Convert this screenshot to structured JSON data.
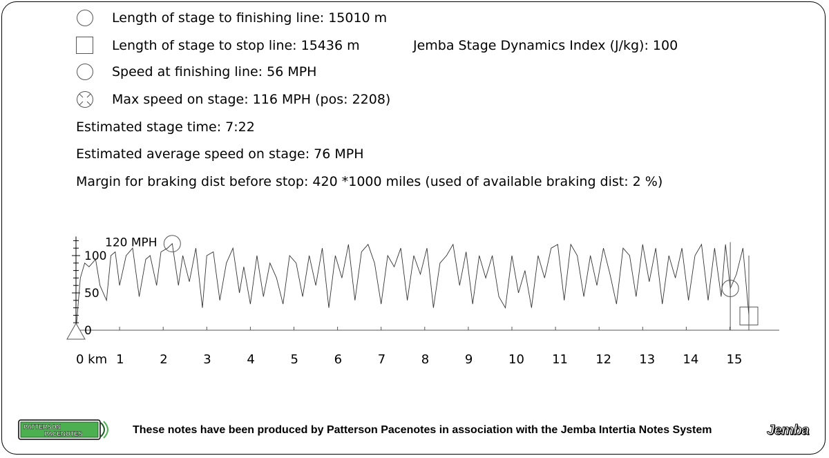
{
  "stats": {
    "finish_length": "Length of stage to finishing line: 15010 m",
    "stop_length": "Length of stage to stop line: 15436 m",
    "dynamics_index": "Jemba Stage Dynamics Index (J/kg): 100",
    "finish_speed": "Speed at finishing line: 56 MPH",
    "max_speed": "Max speed on stage: 116 MPH (pos: 2208)",
    "stage_time": "Estimated stage time: 7:22",
    "avg_speed": "Estimated average speed on stage: 76 MPH",
    "braking_margin": "Margin for braking dist before stop: 420 *1000 miles (used of available braking dist: 2 %)"
  },
  "icons": {
    "finish": "circle-icon",
    "stop": "square-icon",
    "finish_speed": "circle-icon",
    "max_speed": "crossed-circle-icon",
    "start": "triangle-icon"
  },
  "chart_data": {
    "type": "line",
    "xlabel": "km",
    "ylabel": "MPH",
    "xlim": [
      0,
      16
    ],
    "ylim": [
      0,
      120
    ],
    "x_ticks": [
      "0 km",
      "1",
      "2",
      "3",
      "4",
      "5",
      "6",
      "7",
      "8",
      "9",
      "10",
      "11",
      "12",
      "13",
      "14",
      "15"
    ],
    "y_ticks": [
      "0",
      "50",
      "100"
    ],
    "y_max_label": "120 MPH",
    "markers": {
      "max_speed": {
        "x": 2.208,
        "y": 116
      },
      "finish": {
        "x": 15.01,
        "y": 56
      },
      "stop": {
        "x": 15.436,
        "y": 20
      }
    },
    "series": [
      {
        "x": [
          0,
          0.1,
          0.2,
          0.3,
          0.45,
          0.55,
          0.7,
          0.8,
          0.9,
          1.0,
          1.15,
          1.3,
          1.45,
          1.6,
          1.7,
          1.85,
          1.95,
          2.1,
          2.208,
          2.35,
          2.45,
          2.6,
          2.75,
          2.9,
          3.0,
          3.15,
          3.3,
          3.45,
          3.6,
          3.75,
          3.85,
          4.0,
          4.15,
          4.3,
          4.45,
          4.6,
          4.75,
          4.9,
          5.05,
          5.2,
          5.35,
          5.5,
          5.65,
          5.8,
          5.95,
          6.1,
          6.25,
          6.4,
          6.55,
          6.7,
          6.85,
          7.0,
          7.15,
          7.3,
          7.45,
          7.6,
          7.75,
          7.9,
          8.05,
          8.2,
          8.35,
          8.5,
          8.65,
          8.8,
          8.95,
          9.1,
          9.25,
          9.4,
          9.55,
          9.7,
          9.85,
          10.0,
          10.15,
          10.3,
          10.45,
          10.6,
          10.75,
          10.9,
          11.05,
          11.2,
          11.35,
          11.5,
          11.65,
          11.8,
          11.95,
          12.1,
          12.25,
          12.4,
          12.55,
          12.7,
          12.85,
          13.0,
          13.15,
          13.3,
          13.45,
          13.6,
          13.75,
          13.9,
          14.05,
          14.2,
          14.35,
          14.5,
          14.65,
          14.8,
          14.9,
          15.01,
          15.15,
          15.3,
          15.436
        ],
        "y": [
          0,
          70,
          90,
          85,
          95,
          60,
          40,
          100,
          105,
          60,
          100,
          110,
          45,
          95,
          100,
          60,
          105,
          110,
          116,
          60,
          100,
          65,
          110,
          30,
          100,
          105,
          40,
          90,
          110,
          50,
          85,
          35,
          100,
          45,
          90,
          70,
          35,
          100,
          90,
          45,
          100,
          60,
          110,
          30,
          100,
          70,
          115,
          40,
          105,
          115,
          90,
          35,
          100,
          85,
          110,
          40,
          100,
          75,
          110,
          30,
          90,
          100,
          115,
          60,
          105,
          35,
          100,
          70,
          100,
          45,
          30,
          100,
          50,
          80,
          30,
          100,
          70,
          110,
          115,
          40,
          115,
          100,
          45,
          100,
          60,
          110,
          75,
          35,
          110,
          100,
          45,
          115,
          65,
          110,
          35,
          100,
          70,
          110,
          40,
          100,
          115,
          40,
          110,
          45,
          115,
          56,
          75,
          110,
          20
        ]
      }
    ]
  },
  "footer": {
    "text": "These notes have been produced by Patterson Pacenotes in association with the Jemba Intertia Notes System",
    "logo_left": "PATTERSON PACENOTES",
    "logo_right": "Jemba"
  }
}
